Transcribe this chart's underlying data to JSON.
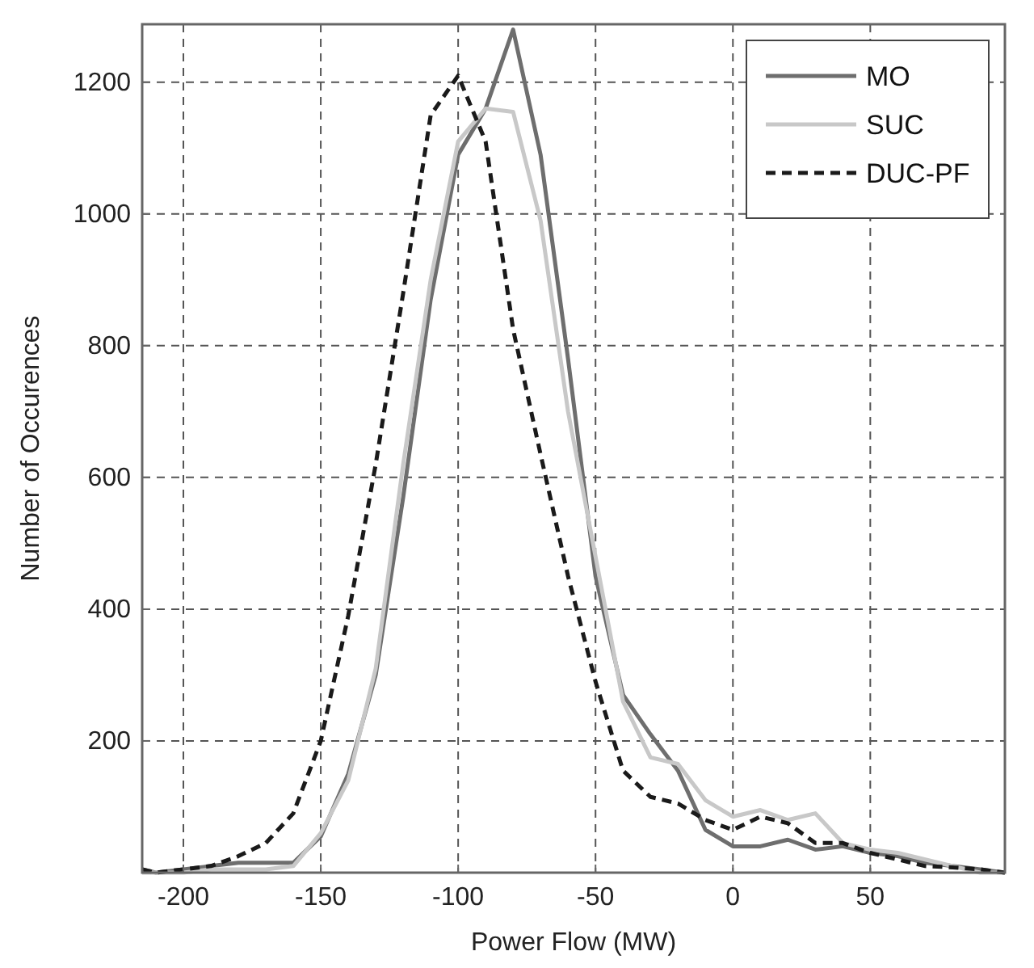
{
  "chart_data": {
    "type": "line",
    "xlabel": "Power Flow (MW)",
    "ylabel": "Number of Occurences",
    "xlim": [
      -215,
      99
    ],
    "ylim": [
      0,
      1288
    ],
    "xticks": [
      -200,
      -150,
      -100,
      -50,
      0,
      50
    ],
    "yticks": [
      200,
      400,
      600,
      800,
      1000,
      1200
    ],
    "grid": true,
    "legend": "top right",
    "x": [
      -215,
      -210,
      -200,
      -190,
      -180,
      -170,
      -160,
      -150,
      -140,
      -130,
      -120,
      -110,
      -100,
      -90,
      -80,
      -70,
      -60,
      -50,
      -40,
      -30,
      -20,
      -10,
      0,
      10,
      20,
      30,
      40,
      50,
      60,
      70,
      80,
      90,
      99
    ],
    "series": [
      {
        "name": "MO",
        "color": "#6e6e6e",
        "line_style": "solid",
        "values": [
          5,
          0,
          5,
          10,
          15,
          15,
          15,
          55,
          150,
          300,
          570,
          870,
          1090,
          1160,
          1280,
          1090,
          780,
          450,
          270,
          210,
          155,
          65,
          40,
          40,
          50,
          35,
          40,
          30,
          25,
          15,
          10,
          5,
          0
        ]
      },
      {
        "name": "SUC",
        "color": "#c8c8c8",
        "line_style": "solid",
        "values": [
          0,
          0,
          0,
          5,
          5,
          5,
          10,
          60,
          140,
          310,
          620,
          900,
          1110,
          1160,
          1155,
          990,
          700,
          480,
          260,
          175,
          165,
          110,
          85,
          95,
          80,
          90,
          45,
          35,
          30,
          20,
          10,
          0,
          0
        ]
      },
      {
        "name": "DUC-PF",
        "color": "#1a1a1a",
        "line_style": "dashed",
        "values": [
          5,
          0,
          5,
          10,
          25,
          45,
          90,
          200,
          390,
          620,
          880,
          1150,
          1210,
          1110,
          825,
          635,
          450,
          290,
          155,
          115,
          105,
          80,
          65,
          85,
          75,
          45,
          45,
          30,
          20,
          10,
          8,
          5,
          0
        ]
      }
    ]
  }
}
